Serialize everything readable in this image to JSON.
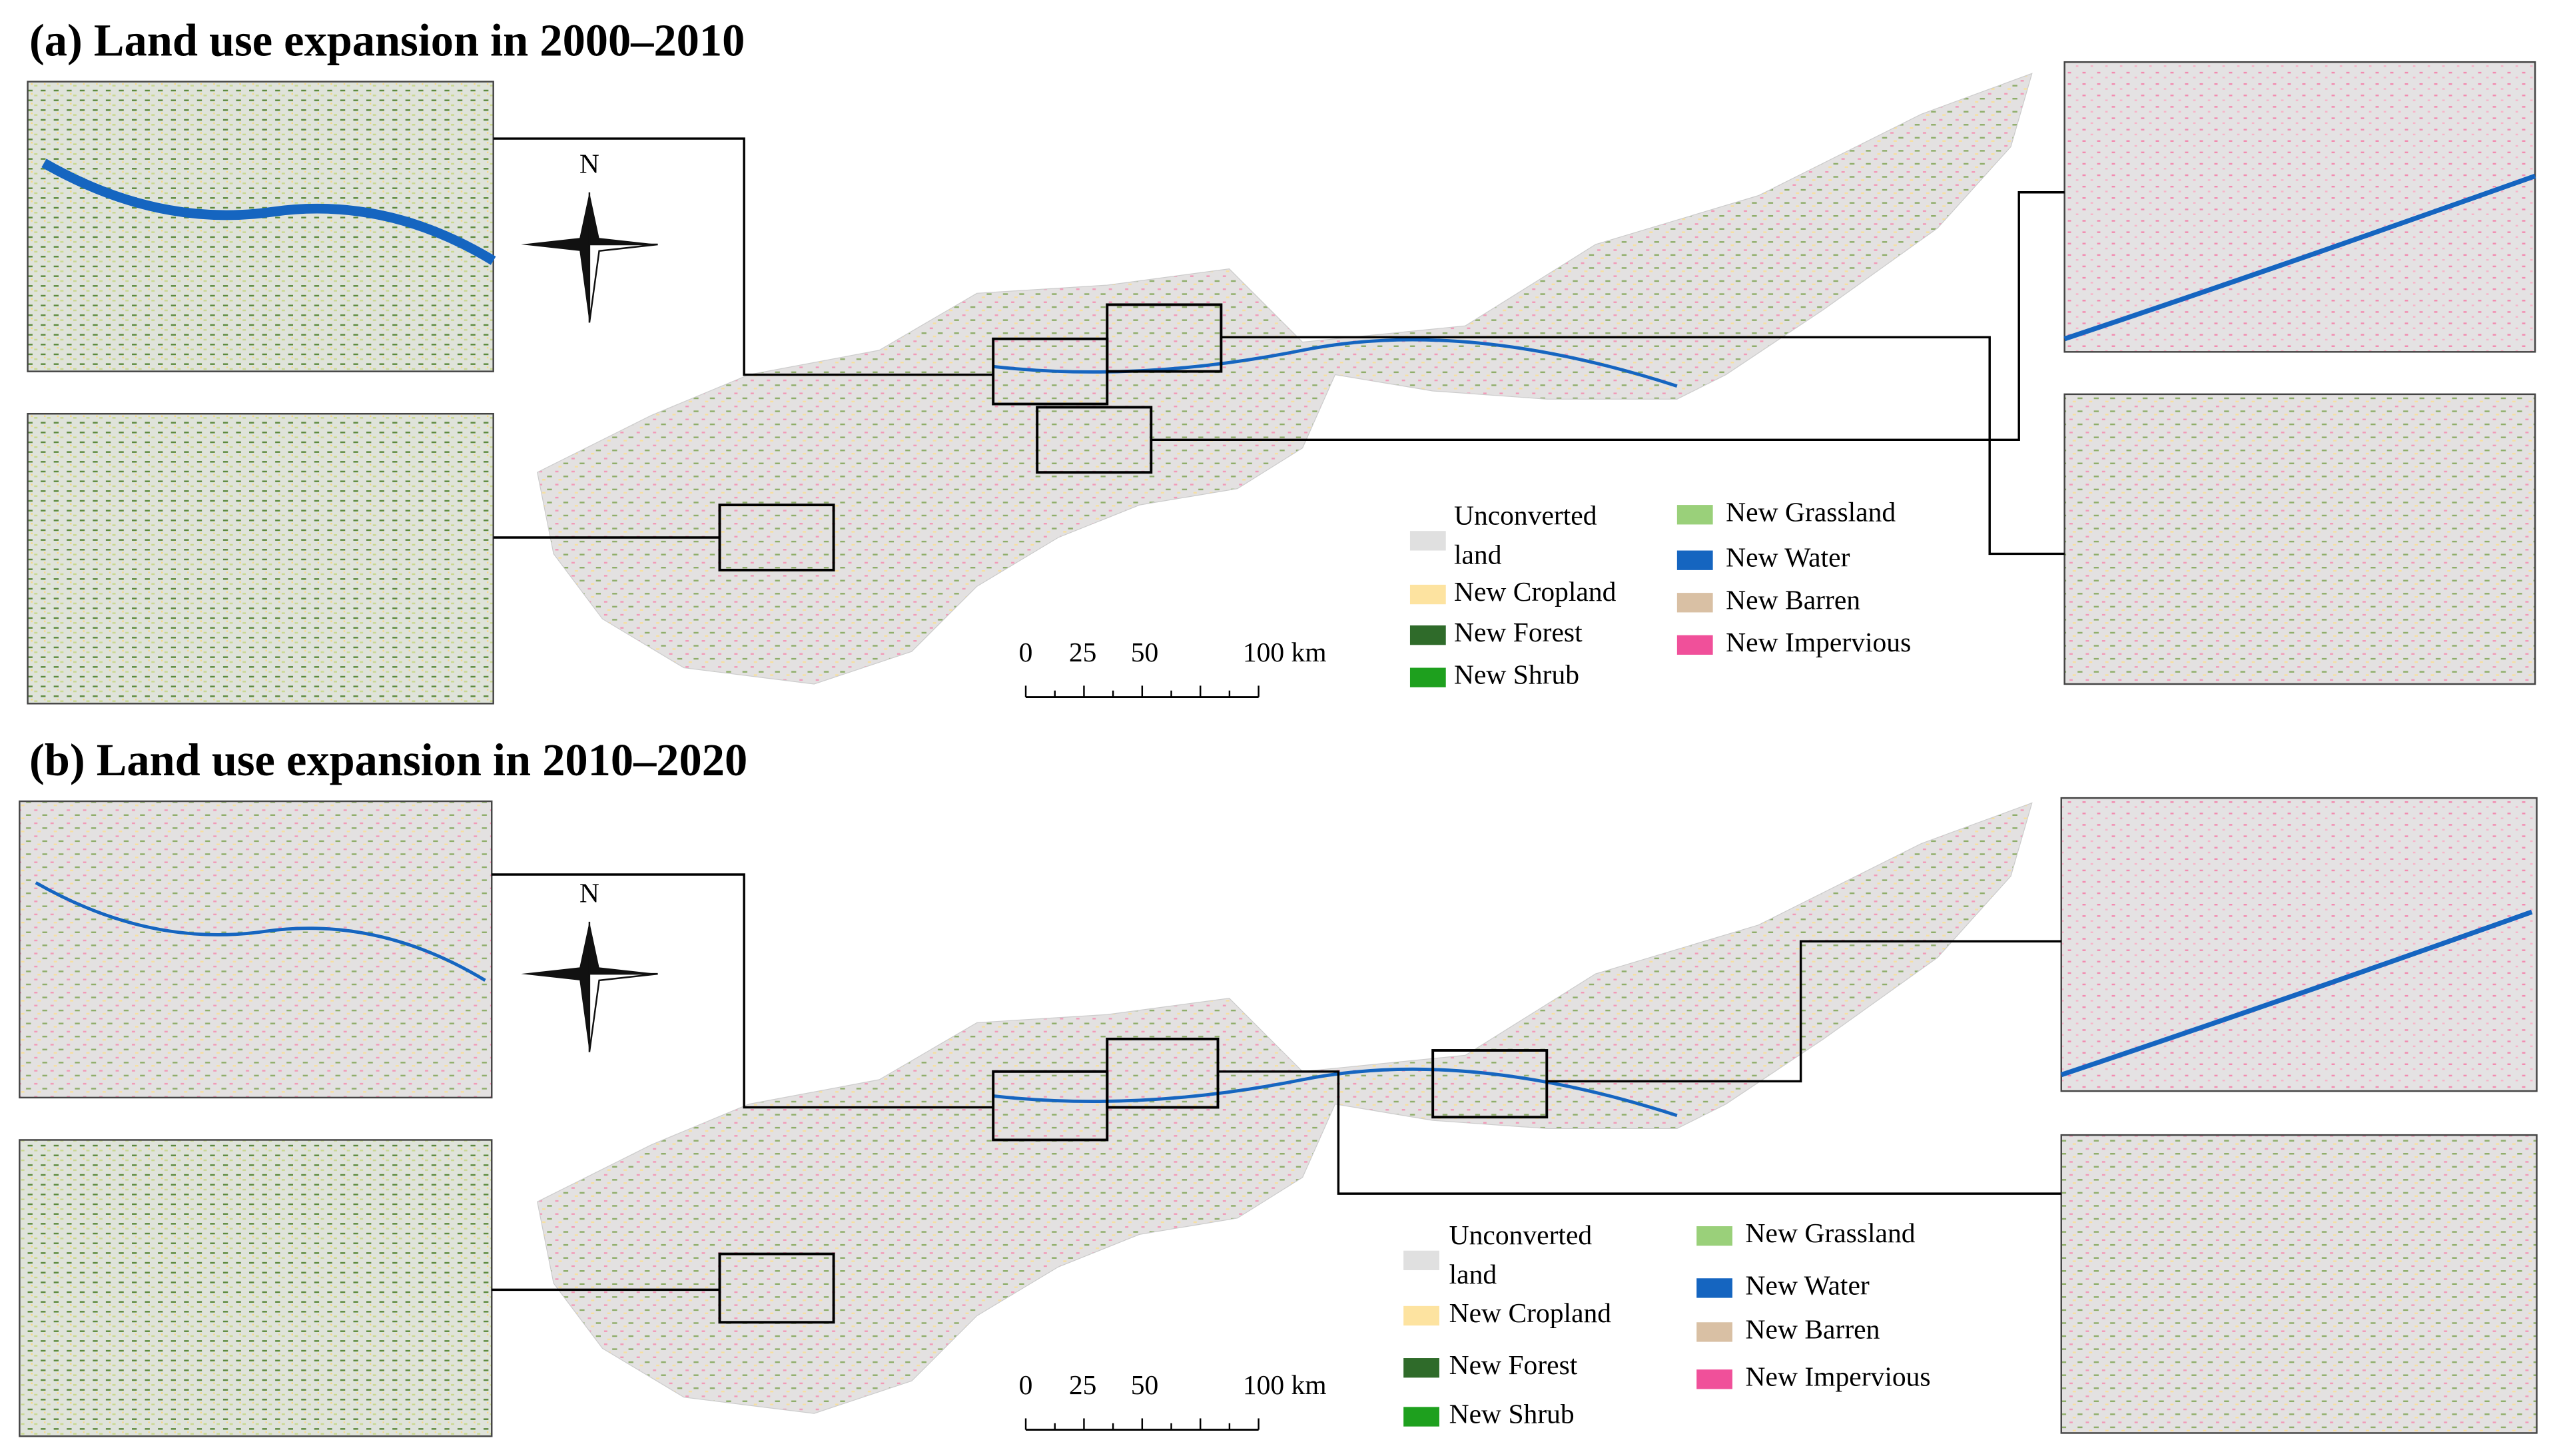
{
  "panels": [
    {
      "title": "(a) Land use expansion in 2000–2010",
      "north": "N",
      "legend": [
        {
          "label": "Unconverted\nland",
          "color": "#e0e0e0"
        },
        {
          "label": "New Cropland",
          "color": "#fde3a0"
        },
        {
          "label": "New Forest",
          "color": "#2f6b2a"
        },
        {
          "label": "New Shrub",
          "color": "#1ea01e"
        },
        {
          "label": "New Grassland",
          "color": "#9ad07a"
        },
        {
          "label": "New Water",
          "color": "#1565c0"
        },
        {
          "label": "New Barren",
          "color": "#d9c0a4"
        },
        {
          "label": "New Impervious",
          "color": "#f0509a"
        }
      ],
      "scale_bar": [
        "0",
        "25",
        "50",
        "100 km"
      ]
    },
    {
      "title": "(b) Land use expansion in 2010–2020",
      "north": "N",
      "legend": [
        {
          "label": "Unconverted\nland",
          "color": "#e0e0e0"
        },
        {
          "label": "New Cropland",
          "color": "#fde3a0"
        },
        {
          "label": "New Forest",
          "color": "#2f6b2a"
        },
        {
          "label": "New Shrub",
          "color": "#1ea01e"
        },
        {
          "label": "New Grassland",
          "color": "#9ad07a"
        },
        {
          "label": "New Water",
          "color": "#1565c0"
        },
        {
          "label": "New Barren",
          "color": "#d9c0a4"
        },
        {
          "label": "New Impervious",
          "color": "#f0509a"
        }
      ],
      "scale_bar": [
        "0",
        "25",
        "50",
        "100 km"
      ]
    }
  ]
}
